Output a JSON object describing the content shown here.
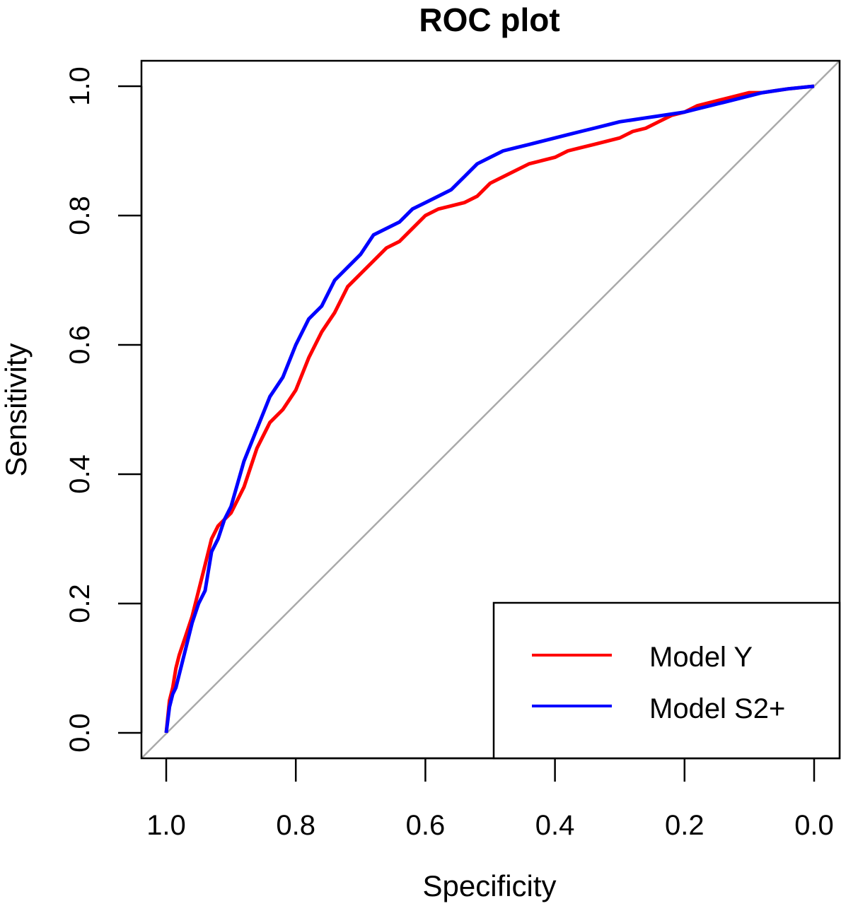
{
  "chart_data": {
    "type": "line",
    "title": "ROC plot",
    "xlabel": "Specificity",
    "ylabel": "Sensitivity",
    "x_reversed": true,
    "xlim": [
      1.0,
      0.0
    ],
    "ylim": [
      0.0,
      1.0
    ],
    "x_ticks": [
      "1.0",
      "0.8",
      "0.6",
      "0.4",
      "0.2",
      "0.0"
    ],
    "y_ticks": [
      "0.0",
      "0.2",
      "0.4",
      "0.6",
      "0.8",
      "1.0"
    ],
    "grid": false,
    "legend_position": "bottom-right",
    "reference_line": {
      "x": [
        1.0,
        0.0
      ],
      "y": [
        0.0,
        1.0
      ],
      "color": "#aaaaaa"
    },
    "series": [
      {
        "name": "Model Y",
        "color": "#ff0000",
        "x": [
          1.0,
          0.995,
          0.99,
          0.985,
          0.98,
          0.97,
          0.96,
          0.95,
          0.94,
          0.93,
          0.92,
          0.91,
          0.9,
          0.88,
          0.86,
          0.84,
          0.82,
          0.8,
          0.78,
          0.76,
          0.74,
          0.72,
          0.7,
          0.68,
          0.66,
          0.64,
          0.62,
          0.6,
          0.58,
          0.56,
          0.54,
          0.52,
          0.5,
          0.48,
          0.46,
          0.44,
          0.42,
          0.4,
          0.38,
          0.36,
          0.34,
          0.32,
          0.3,
          0.28,
          0.26,
          0.24,
          0.22,
          0.2,
          0.18,
          0.16,
          0.14,
          0.12,
          0.1,
          0.08,
          0.06,
          0.04,
          0.02,
          0.0
        ],
        "y": [
          0.0,
          0.05,
          0.07,
          0.1,
          0.12,
          0.15,
          0.18,
          0.22,
          0.26,
          0.3,
          0.32,
          0.33,
          0.34,
          0.38,
          0.44,
          0.48,
          0.5,
          0.53,
          0.58,
          0.62,
          0.65,
          0.69,
          0.71,
          0.73,
          0.75,
          0.76,
          0.78,
          0.8,
          0.81,
          0.815,
          0.82,
          0.83,
          0.85,
          0.86,
          0.87,
          0.88,
          0.885,
          0.89,
          0.9,
          0.905,
          0.91,
          0.915,
          0.92,
          0.93,
          0.935,
          0.945,
          0.955,
          0.96,
          0.97,
          0.975,
          0.98,
          0.985,
          0.99,
          0.99,
          0.993,
          0.996,
          0.998,
          1.0
        ]
      },
      {
        "name": "Model S2+",
        "color": "#0000ff",
        "x": [
          1.0,
          0.995,
          0.99,
          0.985,
          0.98,
          0.97,
          0.96,
          0.95,
          0.94,
          0.935,
          0.93,
          0.92,
          0.91,
          0.9,
          0.88,
          0.86,
          0.84,
          0.82,
          0.8,
          0.78,
          0.76,
          0.74,
          0.72,
          0.7,
          0.68,
          0.66,
          0.64,
          0.62,
          0.6,
          0.58,
          0.56,
          0.54,
          0.52,
          0.5,
          0.48,
          0.46,
          0.44,
          0.42,
          0.4,
          0.38,
          0.36,
          0.34,
          0.32,
          0.3,
          0.28,
          0.26,
          0.24,
          0.22,
          0.2,
          0.18,
          0.16,
          0.14,
          0.12,
          0.1,
          0.08,
          0.06,
          0.04,
          0.02,
          0.0
        ],
        "y": [
          0.0,
          0.04,
          0.06,
          0.07,
          0.09,
          0.13,
          0.17,
          0.2,
          0.22,
          0.25,
          0.28,
          0.3,
          0.33,
          0.35,
          0.42,
          0.47,
          0.52,
          0.55,
          0.6,
          0.64,
          0.66,
          0.7,
          0.72,
          0.74,
          0.77,
          0.78,
          0.79,
          0.81,
          0.82,
          0.83,
          0.84,
          0.86,
          0.88,
          0.89,
          0.9,
          0.905,
          0.91,
          0.915,
          0.92,
          0.925,
          0.93,
          0.935,
          0.94,
          0.945,
          0.948,
          0.951,
          0.954,
          0.957,
          0.96,
          0.965,
          0.97,
          0.975,
          0.98,
          0.985,
          0.99,
          0.993,
          0.996,
          0.998,
          1.0
        ]
      }
    ]
  }
}
